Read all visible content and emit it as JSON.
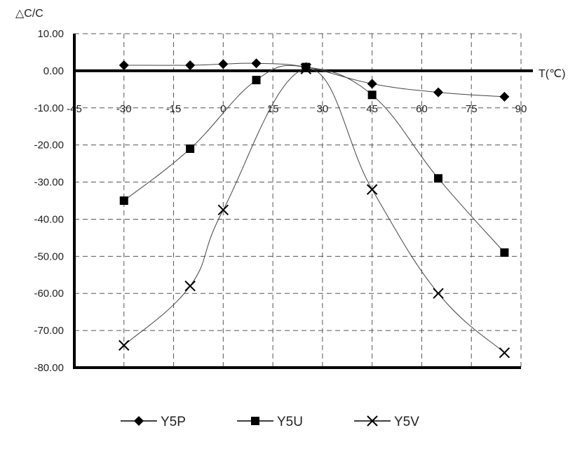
{
  "chart_data": {
    "type": "line",
    "ylabel": "△C/C",
    "xlabel": "T(℃)",
    "xlim": [
      -45,
      90
    ],
    "ylim": [
      -80,
      10
    ],
    "x_ticks": [
      "-45",
      "-30",
      "-15",
      "0",
      "15",
      "30",
      "45",
      "60",
      "75",
      "90"
    ],
    "y_ticks": [
      "10.00",
      "0.00",
      "-10.00",
      "-20.00",
      "-30.00",
      "-40.00",
      "-50.00",
      "-60.00",
      "-70.00",
      "-80.00"
    ],
    "grid": true,
    "legend_position": "bottom",
    "series": [
      {
        "name": "Y5P",
        "marker": "diamond",
        "x": [
          -30,
          -10,
          0,
          10,
          25,
          45,
          65,
          85
        ],
        "y": [
          1.5,
          1.5,
          1.8,
          2.0,
          1.0,
          -3.5,
          -5.8,
          -7.0
        ]
      },
      {
        "name": "Y5U",
        "marker": "square",
        "x": [
          -30,
          -10,
          10,
          25,
          45,
          65,
          85
        ],
        "y": [
          -35,
          -21,
          -2.5,
          1.0,
          -6.5,
          -29,
          -49
        ]
      },
      {
        "name": "Y5V",
        "marker": "x",
        "x": [
          -30,
          -10,
          0,
          25,
          45,
          65,
          85
        ],
        "y": [
          -74,
          -58,
          -37.5,
          0.5,
          -32,
          -60,
          -76
        ]
      }
    ]
  }
}
